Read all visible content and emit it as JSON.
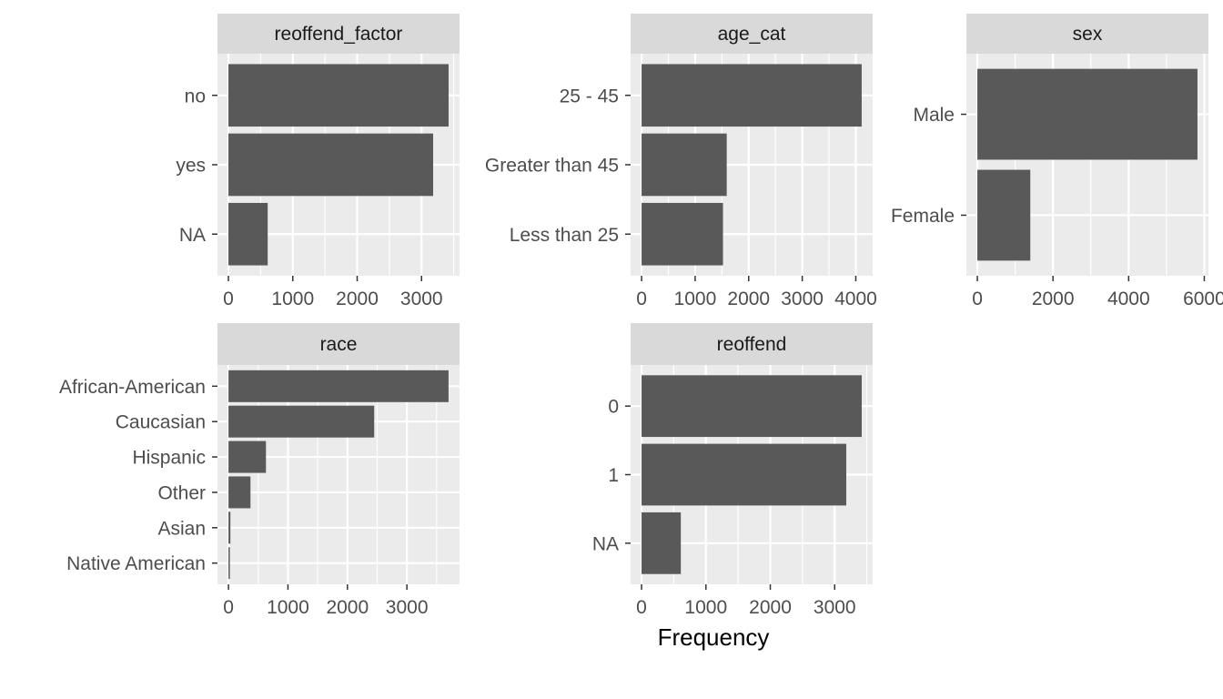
{
  "x_axis_title": "Frequency",
  "colors": {
    "panel_background": "#EBEBEB",
    "grid": "#FFFFFF",
    "strip_background": "#D9D9D9",
    "bar_fill": "#595959",
    "tick_text": "#4D4D4D"
  },
  "chart_data": [
    {
      "type": "bar",
      "orientation": "horizontal",
      "title": "reoffend_factor",
      "categories": [
        "no",
        "yes",
        "NA"
      ],
      "values": [
        3420,
        3180,
        610
      ],
      "xticks": [
        0,
        1000,
        2000,
        3000
      ],
      "xlim": [
        -170,
        3590
      ],
      "grid": true
    },
    {
      "type": "bar",
      "orientation": "horizontal",
      "title": "age_cat",
      "categories": [
        "25 - 45",
        "Greater than 45",
        "Less than 25"
      ],
      "values": [
        4110,
        1590,
        1520
      ],
      "xticks": [
        0,
        1000,
        2000,
        3000,
        4000
      ],
      "xlim": [
        -205,
        4315
      ],
      "grid": true
    },
    {
      "type": "bar",
      "orientation": "horizontal",
      "title": "sex",
      "categories": [
        "Male",
        "Female"
      ],
      "values": [
        5820,
        1400
      ],
      "xticks": [
        0,
        2000,
        4000,
        6000
      ],
      "xlim": [
        -290,
        6110
      ],
      "grid": true
    },
    {
      "type": "bar",
      "orientation": "horizontal",
      "title": "race",
      "categories": [
        "African-American",
        "Caucasian",
        "Hispanic",
        "Other",
        "Asian",
        "Native American"
      ],
      "values": [
        3700,
        2450,
        630,
        370,
        32,
        18
      ],
      "xticks": [
        0,
        1000,
        2000,
        3000
      ],
      "xlim": [
        -185,
        3885
      ],
      "grid": true
    },
    {
      "type": "bar",
      "orientation": "horizontal",
      "title": "reoffend",
      "categories": [
        "0",
        "1",
        "NA"
      ],
      "values": [
        3420,
        3180,
        610
      ],
      "xticks": [
        0,
        1000,
        2000,
        3000
      ],
      "xlim": [
        -170,
        3590
      ],
      "grid": true
    }
  ]
}
